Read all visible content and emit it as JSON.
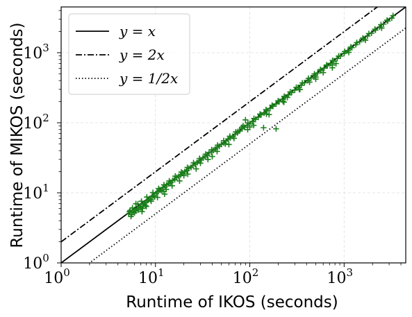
{
  "chart_data": {
    "type": "scatter",
    "title": "",
    "xlabel": "Runtime of IKOS (seconds)",
    "ylabel": "Runtime of MIKOS (seconds)",
    "xscale": "log",
    "yscale": "log",
    "xlim": [
      1,
      4500
    ],
    "ylim": [
      1,
      4500
    ],
    "x_ticks": [
      {
        "base": "10",
        "exp": "0",
        "value": 1
      },
      {
        "base": "10",
        "exp": "1",
        "value": 10
      },
      {
        "base": "10",
        "exp": "2",
        "value": 100
      },
      {
        "base": "10",
        "exp": "3",
        "value": 1000
      }
    ],
    "y_ticks": [
      {
        "base": "10",
        "exp": "0",
        "value": 1
      },
      {
        "base": "10",
        "exp": "1",
        "value": 10
      },
      {
        "base": "10",
        "exp": "2",
        "value": 100
      },
      {
        "base": "10",
        "exp": "3",
        "value": 1000
      }
    ],
    "grid": true,
    "legend_position": "top-left",
    "marker": "+",
    "marker_color": "#1a7f1a",
    "reference_lines": [
      {
        "label": "y = x",
        "factor": 1,
        "style": "solid"
      },
      {
        "label": "y = 2x",
        "factor": 2,
        "style": "dashdot"
      },
      {
        "label": "y = 1/2x",
        "factor": 0.5,
        "style": "dotted"
      }
    ],
    "points": [
      [
        5.2,
        5.0
      ],
      [
        5.4,
        5.6
      ],
      [
        5.6,
        4.9
      ],
      [
        5.8,
        5.3
      ],
      [
        6.0,
        5.8
      ],
      [
        6.2,
        5.5
      ],
      [
        6.4,
        6.0
      ],
      [
        6.6,
        5.7
      ],
      [
        6.8,
        6.4
      ],
      [
        7.0,
        6.2
      ],
      [
        7.2,
        5.4
      ],
      [
        7.4,
        6.8
      ],
      [
        7.6,
        7.1
      ],
      [
        7.8,
        6.6
      ],
      [
        8.0,
        7.4
      ],
      [
        8.3,
        7.8
      ],
      [
        8.6,
        8.2
      ],
      [
        8.9,
        8.0
      ],
      [
        9.2,
        8.9
      ],
      [
        9.5,
        9.1
      ],
      [
        9.8,
        8.7
      ],
      [
        10.2,
        9.8
      ],
      [
        10.6,
        10.4
      ],
      [
        11.0,
        11.0
      ],
      [
        11.5,
        10.8
      ],
      [
        12.0,
        11.9
      ],
      [
        12.6,
        12.2
      ],
      [
        13.2,
        13.0
      ],
      [
        13.8,
        13.5
      ],
      [
        14.5,
        14.1
      ],
      [
        15.2,
        15.0
      ],
      [
        16.0,
        15.4
      ],
      [
        16.8,
        16.6
      ],
      [
        17.6,
        17.1
      ],
      [
        18.5,
        18.0
      ],
      [
        19.4,
        19.2
      ],
      [
        20.4,
        20.0
      ],
      [
        21.5,
        20.8
      ],
      [
        22.6,
        22.3
      ],
      [
        23.8,
        23.0
      ],
      [
        25.0,
        24.6
      ],
      [
        26.3,
        25.5
      ],
      [
        27.6,
        27.1
      ],
      [
        29.0,
        28.4
      ],
      [
        30.5,
        29.6
      ],
      [
        32.0,
        31.5
      ],
      [
        33.6,
        33.0
      ],
      [
        35.3,
        34.1
      ],
      [
        37.0,
        37.8
      ],
      [
        39.0,
        38.0
      ],
      [
        41.0,
        40.5
      ],
      [
        43.0,
        42.0
      ],
      [
        45.0,
        44.6
      ],
      [
        47.5,
        46.0
      ],
      [
        50.0,
        49.2
      ],
      [
        53.0,
        51.8
      ],
      [
        56.0,
        55.0
      ],
      [
        59.0,
        58.3
      ],
      [
        62.0,
        61.0
      ],
      [
        66.0,
        64.0
      ],
      [
        70.0,
        68.5
      ],
      [
        74.0,
        72.0
      ],
      [
        78.0,
        76.5
      ],
      [
        83.0,
        82.0
      ],
      [
        88.0,
        86.0
      ],
      [
        94.0,
        92.0
      ],
      [
        100.0,
        97.0
      ],
      [
        107.0,
        104.0
      ],
      [
        115.0,
        112.0
      ],
      [
        123.0,
        120.0
      ],
      [
        132.0,
        130.0
      ],
      [
        142.0,
        138.0
      ],
      [
        152.0,
        148.0
      ],
      [
        164.0,
        160.0
      ],
      [
        176.0,
        172.0
      ],
      [
        190.0,
        186.0
      ],
      [
        205.0,
        200.0
      ],
      [
        221.0,
        216.0
      ],
      [
        238.0,
        232.0
      ],
      [
        257.0,
        250.0
      ],
      [
        278.0,
        270.0
      ],
      [
        300.0,
        292.0
      ],
      [
        325.0,
        318.0
      ],
      [
        352.0,
        344.0
      ],
      [
        380.0,
        372.0
      ],
      [
        412.0,
        402.0
      ],
      [
        446.0,
        436.0
      ],
      [
        483.0,
        472.0
      ],
      [
        523.0,
        512.0
      ],
      [
        566.0,
        554.0
      ],
      [
        613.0,
        600.0
      ],
      [
        664.0,
        650.0
      ],
      [
        720.0,
        705.0
      ],
      [
        780.0,
        762.0
      ],
      [
        845.0,
        826.0
      ],
      [
        915.0,
        895.0
      ],
      [
        1000.0,
        975.0
      ],
      [
        1100.0,
        1075.0
      ],
      [
        1210.0,
        1180.0
      ],
      [
        1330.0,
        1300.0
      ],
      [
        1460.0,
        1430.0
      ],
      [
        1610.0,
        1570.0
      ],
      [
        1770.0,
        1730.0
      ],
      [
        1950.0,
        1900.0
      ],
      [
        2150.0,
        2100.0
      ],
      [
        2380.0,
        2320.0
      ],
      [
        2620.0,
        2560.0
      ],
      [
        2900.0,
        2830.0
      ],
      [
        3200.0,
        3120.0
      ],
      [
        8.0,
        6.4
      ],
      [
        6.2,
        7.0
      ],
      [
        12.5,
        9.6
      ],
      [
        18.0,
        14.8
      ],
      [
        27.0,
        22.0
      ],
      [
        40.0,
        33.0
      ],
      [
        60.0,
        49.0
      ],
      [
        95.0,
        80.0
      ],
      [
        140.0,
        85.0
      ],
      [
        190.0,
        82.0
      ],
      [
        110.0,
        92.0
      ],
      [
        90.0,
        110.0
      ],
      [
        75.0,
        75.0
      ],
      [
        160.0,
        131.0
      ],
      [
        230.0,
        197.0
      ],
      [
        500.0,
        420.0
      ],
      [
        750.0,
        610.0
      ],
      [
        820.0,
        700.0
      ],
      [
        600.0,
        520.0
      ],
      [
        250.0,
        230.0
      ],
      [
        340.0,
        300.0
      ],
      [
        430.0,
        380.0
      ],
      [
        55.0,
        50.0
      ],
      [
        36.0,
        30.0
      ],
      [
        22.0,
        18.5
      ],
      [
        15.0,
        12.6
      ],
      [
        10.5,
        8.6
      ],
      [
        7.3,
        6.0
      ],
      [
        5.5,
        4.6
      ],
      [
        9.0,
        7.6
      ],
      [
        13.0,
        11.2
      ],
      [
        20.0,
        17.6
      ],
      [
        30.0,
        26.5
      ],
      [
        45.0,
        39.0
      ],
      [
        68.0,
        60.0
      ],
      [
        100.0,
        87.0
      ],
      [
        150.0,
        133.0
      ],
      [
        225.0,
        202.0
      ],
      [
        335.0,
        298.0
      ],
      [
        500.0,
        448.0
      ],
      [
        750.0,
        668.0
      ],
      [
        1120.0,
        1010.0
      ],
      [
        1680.0,
        1510.0
      ],
      [
        2500.0,
        2250.0
      ],
      [
        5.3,
        5.4
      ],
      [
        5.7,
        6.1
      ],
      [
        6.5,
        6.9
      ],
      [
        7.1,
        7.6
      ],
      [
        8.1,
        8.7
      ],
      [
        9.4,
        10.1
      ],
      [
        10.8,
        11.5
      ],
      [
        12.3,
        13.0
      ],
      [
        14.0,
        14.8
      ],
      [
        16.2,
        17.3
      ],
      [
        18.8,
        19.8
      ],
      [
        21.8,
        23.0
      ],
      [
        25.3,
        26.8
      ],
      [
        29.3,
        30.9
      ],
      [
        34.0,
        35.6
      ],
      [
        39.4,
        41.2
      ],
      [
        45.6,
        47.9
      ],
      [
        52.9,
        55.5
      ],
      [
        61.3,
        64.2
      ],
      [
        71.1,
        74.0
      ],
      [
        82.4,
        86.0
      ],
      [
        95.5,
        99.5
      ],
      [
        110.7,
        115.0
      ],
      [
        128.3,
        133.0
      ],
      [
        148.7,
        154.0
      ],
      [
        172.4,
        178.0
      ],
      [
        199.8,
        206.0
      ],
      [
        231.6,
        238.0
      ],
      [
        268.4,
        276.0
      ],
      [
        311.1,
        320.0
      ],
      [
        360.6,
        370.0
      ],
      [
        418.0,
        430.0
      ],
      [
        484.5,
        498.0
      ],
      [
        561.6,
        576.0
      ],
      [
        650.9,
        668.0
      ],
      [
        754.5,
        774.0
      ],
      [
        874.5,
        896.0
      ],
      [
        1013.6,
        1038.0
      ],
      [
        1174.9,
        1204.0
      ],
      [
        1361.8,
        1395.0
      ],
      [
        1578.5,
        1616.0
      ],
      [
        1829.6,
        1873.0
      ],
      [
        2120.7,
        2170.0
      ],
      [
        2458.1,
        2515.0
      ],
      [
        2849.2,
        2915.0
      ],
      [
        3300.0,
        3380.0
      ],
      [
        6.0,
        5.2
      ],
      [
        11.5,
        11.0
      ],
      [
        85.0,
        90.0
      ],
      [
        12.0,
        10.5
      ]
    ]
  }
}
